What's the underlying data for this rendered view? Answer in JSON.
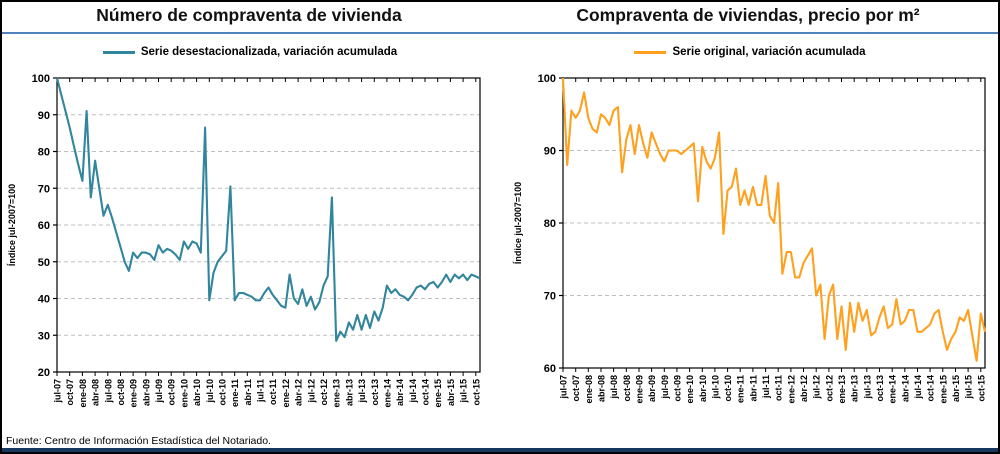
{
  "page": {
    "footer_source": "Fuente: Centro de Información Estadística del Notariado."
  },
  "colors": {
    "title_rule_blue": "#4F81BD",
    "bottom_bar_blue": "#17375E",
    "gridline_gray": "#BFBFBF",
    "axis_black": "#000000"
  },
  "chart_data": [
    {
      "type": "line",
      "title": "Número de compraventa de vivienda",
      "legend": "Serie desestacionalizada, variación acumulada",
      "series_color": "#31859C",
      "ylabel": "Índice jul-2007=100",
      "ylim": [
        20,
        100
      ],
      "yticks": [
        20,
        30,
        40,
        50,
        60,
        70,
        80,
        90,
        100
      ],
      "gridlines": [
        30,
        40,
        50,
        60,
        70,
        80,
        90
      ],
      "grid": "dashed horizontal",
      "legend_position": "top-center",
      "x_description": "monthly, jul-2007 to nov-2015; tick labels every 3 months",
      "x_tick_labels": [
        "jul-07",
        "oct-07",
        "ene-08",
        "abr-08",
        "jul-08",
        "oct-08",
        "ene-09",
        "abr-09",
        "jul-09",
        "oct-09",
        "ene-10",
        "abr-10",
        "jul-10",
        "oct-10",
        "ene-11",
        "abr-11",
        "jul-11",
        "oct-11",
        "ene-12",
        "abr-12",
        "jul-12",
        "oct-12",
        "ene-13",
        "abr-13",
        "jul-13",
        "oct-13",
        "ene-14",
        "abr-14",
        "jul-14",
        "oct-14",
        "ene-15",
        "abr-15",
        "jul-15",
        "oct-15"
      ],
      "values": [
        100,
        95.5,
        91,
        86.5,
        81.5,
        76.5,
        72,
        91,
        67.5,
        77.5,
        70,
        62.5,
        65.5,
        62,
        58,
        54,
        50,
        47.5,
        52.5,
        51,
        52.5,
        52.5,
        52,
        50.5,
        54.5,
        52.5,
        53.5,
        53,
        52,
        50.5,
        55.5,
        53.5,
        55.5,
        55,
        52.5,
        86.5,
        39.5,
        47,
        50,
        51.5,
        53,
        70.5,
        39.5,
        41.5,
        41.5,
        41,
        40.5,
        39.5,
        39.5,
        41.5,
        43,
        41,
        39.5,
        38,
        37.5,
        46.5,
        40,
        38.5,
        42.5,
        38,
        40.5,
        37,
        39,
        43.5,
        46,
        67.5,
        28.5,
        31,
        29.5,
        33.5,
        31.5,
        35.5,
        31.5,
        35.5,
        32,
        36.5,
        34,
        37.5,
        43.5,
        41.5,
        42.5,
        41,
        40.5,
        39.5,
        41,
        43,
        43.5,
        42.5,
        44,
        44.5,
        43,
        44.5,
        46.5,
        44.5,
        46.5,
        45.5,
        46.5,
        45,
        46.5,
        46,
        45.5
      ]
    },
    {
      "type": "line",
      "title": "Compraventa de viviendas, precio por m²",
      "legend": "Serie original, variación acumulada",
      "series_color": "#FFA01E",
      "ylabel": "Índice jul-2007=100",
      "ylim": [
        60,
        100
      ],
      "yticks": [
        60,
        70,
        80,
        90,
        100
      ],
      "gridlines": [
        70,
        80,
        90
      ],
      "grid": "dashed horizontal",
      "legend_position": "top-center",
      "x_description": "monthly, jul-2007 to nov-2015; tick labels every 3 months",
      "x_tick_labels": [
        "jul-07",
        "oct-07",
        "ene-08",
        "abr-08",
        "jul-08",
        "oct-08",
        "ene-09",
        "abr-09",
        "jul-09",
        "oct-09",
        "ene-10",
        "abr-10",
        "jul-10",
        "oct-10",
        "ene-11",
        "abr-11",
        "jul-11",
        "oct-11",
        "ene-12",
        "abr-12",
        "jul-12",
        "oct-12",
        "ene-13",
        "abr-13",
        "jul-13",
        "oct-13",
        "ene-14",
        "abr-14",
        "jul-14",
        "oct-14",
        "ene-15",
        "abr-15",
        "jul-15",
        "oct-15"
      ],
      "values": [
        100,
        88,
        95.5,
        94.5,
        95.5,
        98,
        94.5,
        93,
        92.5,
        95,
        94.5,
        93.5,
        95.5,
        96,
        87,
        91.5,
        93.5,
        89.5,
        93.5,
        91,
        89,
        92.5,
        91,
        89.5,
        88.5,
        90,
        90,
        90,
        89.5,
        90,
        90.5,
        91,
        83,
        90.5,
        88.5,
        87.5,
        89,
        92.5,
        78.5,
        84.5,
        85,
        87.5,
        82.5,
        84.5,
        82.5,
        85,
        82.5,
        82.5,
        86.5,
        81,
        80,
        85.5,
        73,
        76,
        76,
        72.5,
        72.5,
        74.5,
        75.5,
        76.5,
        70,
        71.5,
        64,
        70,
        71.5,
        64,
        68.5,
        62.5,
        69,
        65,
        69,
        66.5,
        68,
        64.5,
        65,
        67,
        68.5,
        65.5,
        66,
        69.5,
        66,
        66.5,
        68,
        68,
        65,
        65,
        65.5,
        66,
        67.5,
        68,
        65,
        62.5,
        64,
        65,
        67,
        66.5,
        68,
        64.5,
        61,
        67.5,
        65
      ]
    }
  ]
}
